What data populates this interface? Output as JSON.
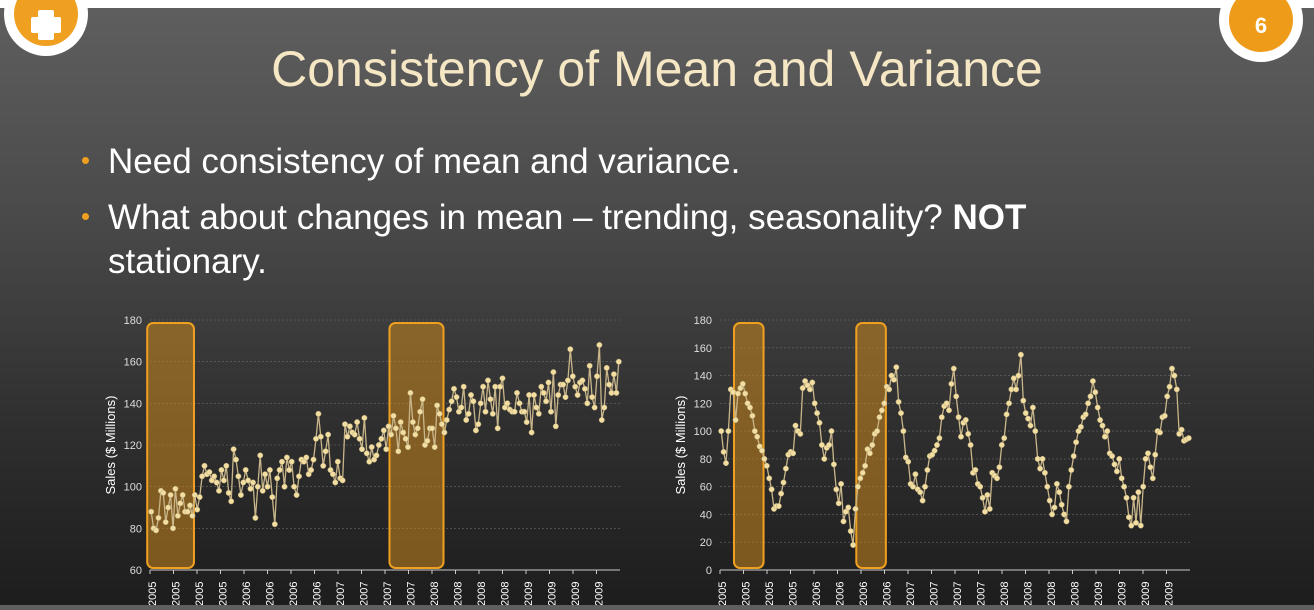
{
  "slide": {
    "title": "Consistency of Mean and Variance",
    "page_number": "6",
    "bullets": [
      {
        "text": "Need consistency of mean and variance."
      },
      {
        "text": "What about changes in mean – trending, seasonality? ",
        "bold": "NOT",
        "tail": "stationary."
      }
    ],
    "logo_icon": "plus-icon",
    "colors": {
      "accent": "#f0a020",
      "title": "#f5e6c4",
      "points": "#f2dea0",
      "line": "#c9b68b",
      "highlight": "#c8861e"
    }
  },
  "chart_data": [
    {
      "type": "line",
      "ylabel": "Sales ($ Millions)",
      "ylim": [
        60,
        180
      ],
      "yticks": [
        60,
        80,
        100,
        120,
        140,
        160,
        180
      ],
      "xtick_labels": [
        "2005",
        "2005",
        "2005",
        "2005",
        "2006",
        "2006",
        "2006",
        "2006",
        "2007",
        "2007",
        "2007",
        "2007",
        "2008",
        "2008",
        "2008",
        "2008",
        "2009",
        "2009",
        "2009",
        "2009"
      ],
      "highlight_ranges": [
        [
          0,
          16
        ],
        [
          100,
          119
        ]
      ],
      "series": [
        {
          "values": [
            88,
            80,
            79,
            85,
            98,
            97,
            83,
            90,
            96,
            80,
            99,
            86,
            92,
            96,
            88,
            88,
            91,
            86,
            96,
            89,
            95,
            105,
            110,
            106,
            107,
            103,
            105,
            102,
            98,
            108,
            103,
            110,
            97,
            93,
            118,
            113,
            105,
            96,
            102,
            108,
            103,
            99,
            102,
            85,
            100,
            115,
            98,
            106,
            100,
            108,
            95,
            82,
            104,
            108,
            112,
            100,
            114,
            108,
            112,
            100,
            96,
            105,
            113,
            112,
            114,
            106,
            108,
            113,
            123,
            135,
            124,
            110,
            117,
            125,
            108,
            106,
            102,
            112,
            104,
            103,
            130,
            124,
            129,
            126,
            125,
            131,
            123,
            118,
            133,
            116,
            112,
            119,
            113,
            115,
            120,
            123,
            127,
            118,
            129,
            125,
            134,
            128,
            117,
            131,
            126,
            123,
            119,
            145,
            131,
            125,
            128,
            136,
            142,
            120,
            122,
            128,
            128,
            119,
            139,
            135,
            130,
            126,
            132,
            137,
            141,
            147,
            143,
            136,
            138,
            148,
            132,
            135,
            144,
            141,
            127,
            130,
            140,
            148,
            136,
            151,
            142,
            135,
            148,
            128,
            148,
            152,
            138,
            140,
            137,
            136,
            136,
            145,
            140,
            136,
            136,
            131,
            144,
            126,
            144,
            138,
            135,
            148,
            145,
            141,
            150,
            136,
            155,
            129,
            144,
            149,
            149,
            143,
            151,
            166,
            153,
            148,
            144,
            150,
            151,
            147,
            140,
            158,
            143,
            138,
            153,
            168,
            132,
            138,
            157,
            149,
            145,
            154,
            145,
            160
          ]
        }
      ]
    },
    {
      "type": "line",
      "ylabel": "Sales ($ Millions)",
      "ylim": [
        0,
        180
      ],
      "yticks": [
        0,
        20,
        40,
        60,
        80,
        100,
        120,
        140,
        160,
        180
      ],
      "xtick_labels": [
        "2005",
        "2005",
        "2005",
        "2005",
        "2006",
        "2006",
        "2006",
        "2006",
        "2007",
        "2007",
        "2007",
        "2007",
        "2008",
        "2008",
        "2008",
        "2008",
        "2009",
        "2009",
        "2009",
        "2009"
      ],
      "highlight_ranges": [
        [
          7,
          16
        ],
        [
          58,
          67
        ]
      ],
      "series": [
        {
          "values": [
            100,
            85,
            77,
            100,
            130,
            128,
            108,
            127,
            131,
            134,
            127,
            120,
            117,
            111,
            100,
            96,
            89,
            86,
            80,
            75,
            66,
            58,
            44,
            46,
            46,
            55,
            63,
            73,
            83,
            85,
            84,
            104,
            100,
            98,
            131,
            136,
            133,
            130,
            135,
            120,
            113,
            106,
            90,
            80,
            88,
            90,
            100,
            76,
            58,
            48,
            62,
            35,
            42,
            45,
            28,
            18,
            44,
            60,
            66,
            70,
            75,
            87,
            84,
            90,
            98,
            100,
            110,
            115,
            120,
            132,
            130,
            140,
            137,
            146,
            121,
            113,
            100,
            81,
            78,
            62,
            60,
            69,
            58,
            56,
            50,
            60,
            72,
            82,
            83,
            86,
            90,
            95,
            110,
            118,
            120,
            115,
            134,
            145,
            125,
            110,
            96,
            106,
            108,
            98,
            90,
            70,
            72,
            62,
            60,
            52,
            42,
            54,
            44,
            70,
            68,
            66,
            74,
            90,
            95,
            112,
            120,
            130,
            138,
            130,
            140,
            155,
            122,
            113,
            109,
            104,
            117,
            100,
            80,
            73,
            80,
            70,
            60,
            50,
            40,
            45,
            62,
            56,
            47,
            40,
            35,
            60,
            72,
            82,
            92,
            100,
            103,
            110,
            112,
            120,
            125,
            136,
            128,
            117,
            108,
            104,
            96,
            100,
            84,
            82,
            76,
            71,
            80,
            66,
            60,
            52,
            38,
            32,
            52,
            34,
            56,
            32,
            60,
            80,
            84,
            74,
            66,
            83,
            100,
            99,
            110,
            111,
            125,
            132,
            145,
            140,
            130,
            98,
            101,
            93,
            94,
            95
          ]
        }
      ]
    }
  ]
}
